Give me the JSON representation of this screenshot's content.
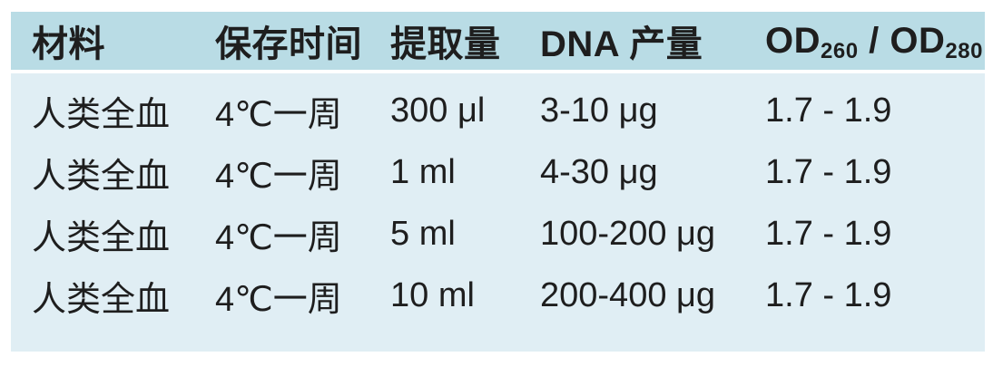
{
  "colors": {
    "header_bg": "#b9dce5",
    "body_bg": "#e0eef4",
    "text": "#1e1e1e",
    "page_bg": "#ffffff"
  },
  "table": {
    "headers": [
      "材料",
      "保存时间",
      "提取量",
      "DNA 产量"
    ],
    "od_header": {
      "base1": "OD",
      "sub1": "260",
      "separator": " / ",
      "base2": "OD",
      "sub2": "280"
    },
    "rows": [
      [
        "人类全血",
        "4℃一周",
        "300 μl",
        "3-10 μg",
        "1.7 - 1.9"
      ],
      [
        "人类全血",
        "4℃一周",
        "1 ml",
        "4-30 μg",
        "1.7 - 1.9"
      ],
      [
        "人类全血",
        "4℃一周",
        "5 ml",
        "100-200 μg",
        "1.7 - 1.9"
      ],
      [
        "人类全血",
        "4℃一周",
        "10 ml",
        "200-400 μg",
        "1.7 - 1.9"
      ]
    ]
  }
}
